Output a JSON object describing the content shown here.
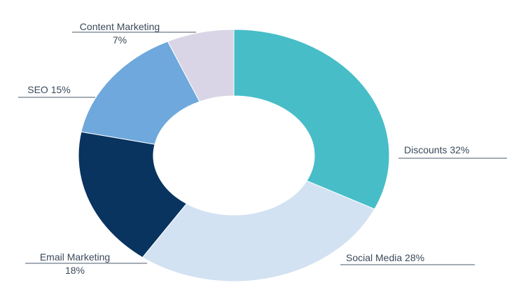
{
  "chart_data": {
    "type": "pie",
    "variant": "donut",
    "title": "",
    "legend": "none",
    "slices": [
      {
        "label": "Discounts",
        "value": 32,
        "display": "Discounts  32%",
        "color": "#47bdc8"
      },
      {
        "label": "Social Media",
        "value": 28,
        "display": "Social Media  28%",
        "color": "#d2e2f2"
      },
      {
        "label": "Email Marketing",
        "value": 18,
        "display": [
          "Email Marketing",
          "18%"
        ],
        "color": "#08345f"
      },
      {
        "label": "SEO",
        "value": 15,
        "display": "SEO  15%",
        "color": "#6ea8dc"
      },
      {
        "label": "Content Marketing",
        "value": 7,
        "display": [
          "Content Marketing",
          "7%"
        ],
        "color": "#d9d5e6"
      }
    ]
  }
}
